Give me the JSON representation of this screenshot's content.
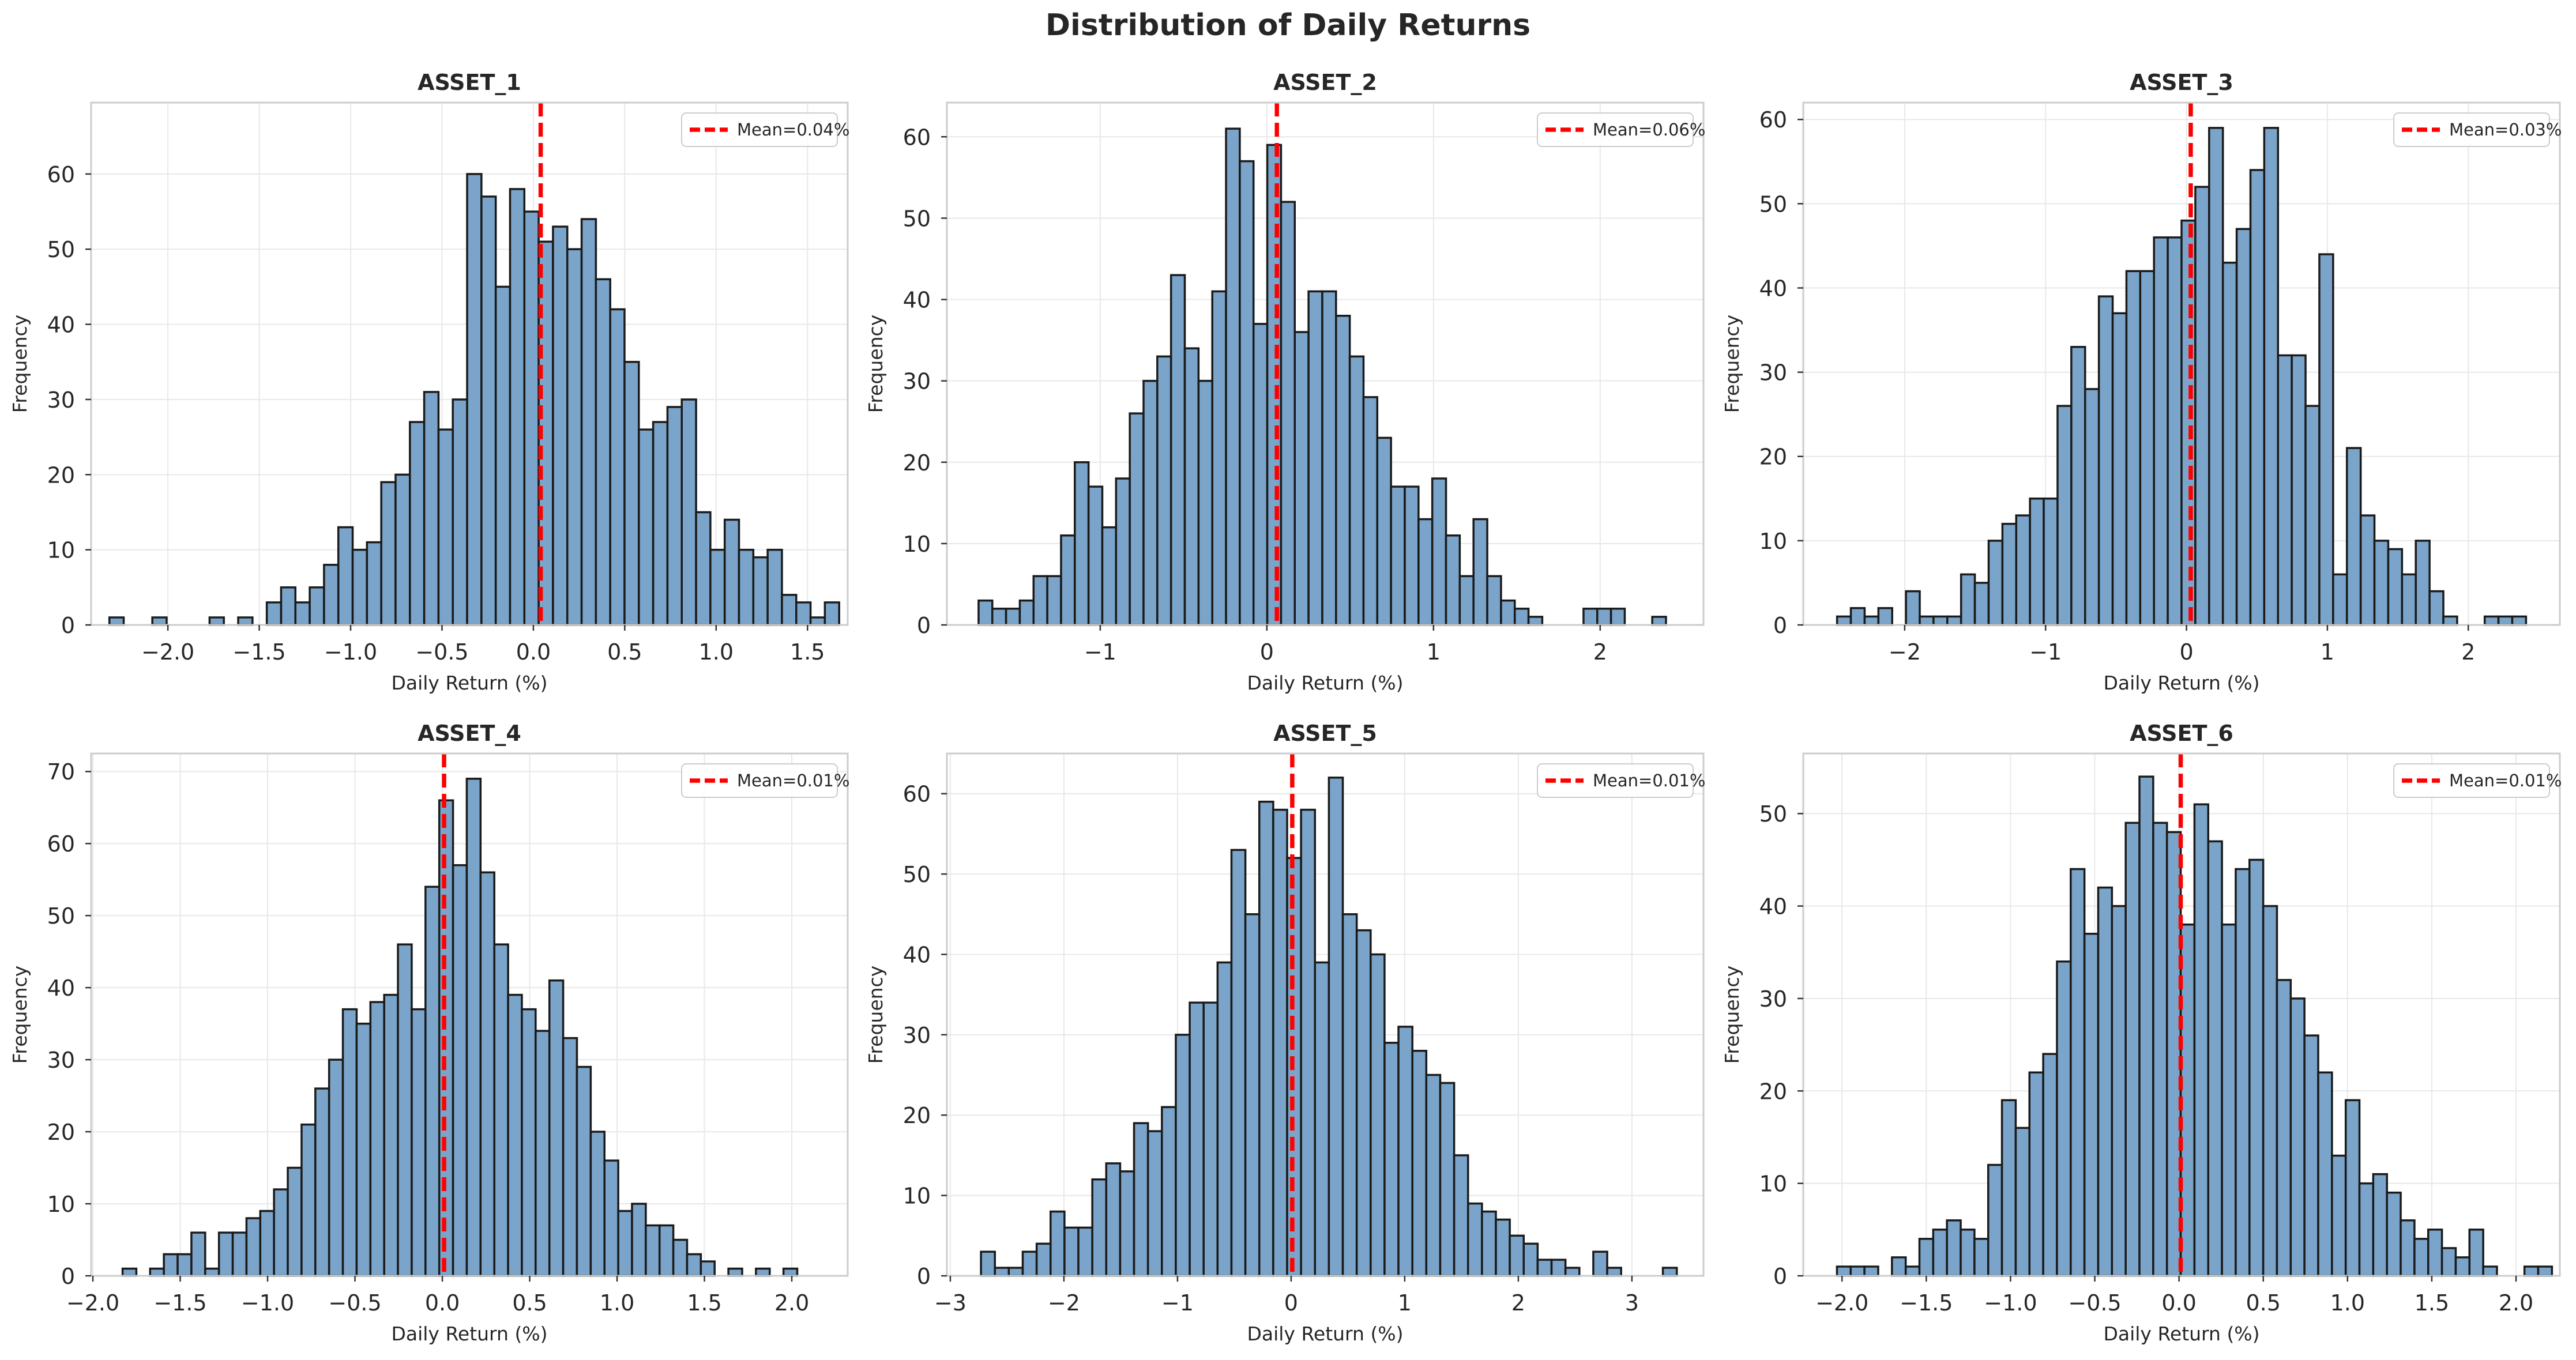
{
  "figure": {
    "title": "Distribution of Daily Returns"
  },
  "colors": {
    "bar_fill": "#7aa4c9",
    "bar_edge": "#1a1a1a",
    "mean_line": "#ff0000",
    "grid": "#e8e8e8",
    "spine": "#cccccc",
    "text": "#262626"
  },
  "chart_data": [
    {
      "type": "bar",
      "title": "ASSET_1",
      "xlabel": "Daily Return (%)",
      "ylabel": "Frequency",
      "xlim": [
        -2.42,
        1.72
      ],
      "ylim": [
        0,
        69.5
      ],
      "xticks": [
        -2.0,
        -1.5,
        -1.0,
        -0.5,
        0.0,
        0.5,
        1.0,
        1.5
      ],
      "xtick_labels": [
        "−2.0",
        "−1.5",
        "−1.0",
        "−0.5",
        "0.0",
        "0.5",
        "1.0",
        "1.5"
      ],
      "yticks": [
        0,
        10,
        20,
        30,
        40,
        50,
        60
      ],
      "bin_start": -2.32,
      "bin_width": 0.0783,
      "counts": [
        1,
        0,
        0,
        1,
        0,
        0,
        0,
        1,
        0,
        1,
        0,
        3,
        5,
        3,
        5,
        8,
        13,
        10,
        11,
        19,
        20,
        27,
        31,
        26,
        30,
        60,
        57,
        45,
        58,
        55,
        51,
        53,
        50,
        54,
        46,
        42,
        35,
        26,
        27,
        29,
        30,
        15,
        10,
        14,
        10,
        9,
        10,
        4,
        3,
        1,
        3
      ],
      "mean": 0.04,
      "legend": "Mean=0.04%",
      "legend_loc": "upper right",
      "grid": true
    },
    {
      "type": "bar",
      "title": "ASSET_2",
      "xlabel": "Daily Return (%)",
      "ylabel": "Frequency",
      "xlim": [
        -1.92,
        2.62
      ],
      "ylim": [
        0,
        64.2
      ],
      "xticks": [
        -1,
        0,
        1,
        2
      ],
      "xtick_labels": [
        "−1",
        "0",
        "1",
        "2"
      ],
      "yticks": [
        0,
        10,
        20,
        30,
        40,
        50,
        60
      ],
      "bin_start": -1.73,
      "bin_width": 0.0825,
      "counts": [
        3,
        2,
        2,
        3,
        6,
        6,
        11,
        20,
        17,
        12,
        18,
        26,
        30,
        33,
        43,
        34,
        30,
        41,
        61,
        57,
        37,
        59,
        52,
        36,
        41,
        41,
        38,
        33,
        28,
        23,
        17,
        17,
        13,
        18,
        11,
        6,
        13,
        6,
        3,
        2,
        1,
        0,
        0,
        0,
        2,
        2,
        2,
        0,
        0,
        1
      ],
      "mean": 0.06,
      "legend": "Mean=0.06%",
      "legend_loc": "upper right",
      "grid": true
    },
    {
      "type": "bar",
      "title": "ASSET_3",
      "xlabel": "Daily Return (%)",
      "ylabel": "Frequency",
      "xlim": [
        -2.72,
        2.65
      ],
      "ylim": [
        0,
        62.0
      ],
      "xticks": [
        -2,
        -1,
        0,
        1,
        2
      ],
      "xtick_labels": [
        "−2",
        "−1",
        "0",
        "1",
        "2"
      ],
      "yticks": [
        0,
        10,
        20,
        30,
        40,
        50,
        60
      ],
      "bin_start": -2.48,
      "bin_width": 0.0978,
      "counts": [
        1,
        2,
        1,
        2,
        0,
        4,
        1,
        1,
        1,
        6,
        5,
        10,
        12,
        13,
        15,
        15,
        26,
        33,
        28,
        39,
        37,
        42,
        42,
        46,
        46,
        48,
        52,
        59,
        43,
        47,
        54,
        59,
        32,
        32,
        26,
        44,
        6,
        21,
        13,
        10,
        9,
        6,
        10,
        4,
        1,
        0,
        0,
        1,
        1,
        1
      ],
      "mean": 0.03,
      "legend": "Mean=0.03%",
      "legend_loc": "upper right",
      "grid": true
    },
    {
      "type": "bar",
      "title": "ASSET_4",
      "xlabel": "Daily Return (%)",
      "ylabel": "Frequency",
      "xlim": [
        -2.01,
        2.32
      ],
      "ylim": [
        0,
        72.5
      ],
      "xticks": [
        -2.0,
        -1.5,
        -1.0,
        -0.5,
        0.0,
        0.5,
        1.0,
        1.5,
        2.0
      ],
      "xtick_labels": [
        "−2.0",
        "−1.5",
        "−1.0",
        "−0.5",
        "0.0",
        "0.5",
        "1.0",
        "1.5",
        "2.0"
      ],
      "yticks": [
        0,
        10,
        20,
        30,
        40,
        50,
        60,
        70
      ],
      "bin_start": -1.83,
      "bin_width": 0.0788,
      "counts": [
        1,
        0,
        1,
        3,
        3,
        6,
        1,
        6,
        6,
        8,
        9,
        12,
        15,
        21,
        26,
        30,
        37,
        35,
        38,
        39,
        46,
        37,
        54,
        66,
        57,
        69,
        56,
        46,
        39,
        37,
        34,
        41,
        33,
        29,
        20,
        16,
        9,
        10,
        7,
        7,
        5,
        3,
        2,
        0,
        1,
        0,
        1,
        0,
        1
      ],
      "mean": 0.01,
      "legend": "Mean=0.01%",
      "legend_loc": "upper right",
      "grid": true
    },
    {
      "type": "bar",
      "title": "ASSET_5",
      "xlabel": "Daily Return (%)",
      "ylabel": "Frequency",
      "xlim": [
        -3.03,
        3.63
      ],
      "ylim": [
        0,
        65.0
      ],
      "xticks": [
        -3,
        -2,
        -1,
        0,
        1,
        2,
        3
      ],
      "xtick_labels": [
        "−3",
        "−2",
        "−1",
        "0",
        "1",
        "2",
        "3"
      ],
      "yticks": [
        0,
        10,
        20,
        30,
        40,
        50,
        60
      ],
      "bin_start": -2.73,
      "bin_width": 0.1225,
      "counts": [
        3,
        1,
        1,
        3,
        4,
        8,
        6,
        6,
        12,
        14,
        13,
        19,
        18,
        21,
        30,
        34,
        34,
        39,
        53,
        45,
        59,
        58,
        52,
        58,
        39,
        62,
        45,
        43,
        40,
        29,
        31,
        28,
        25,
        24,
        15,
        9,
        8,
        7,
        5,
        4,
        2,
        2,
        1,
        0,
        3,
        1,
        0,
        0,
        0,
        1
      ],
      "mean": 0.01,
      "legend": "Mean=0.01%",
      "legend_loc": "upper right",
      "grid": true
    },
    {
      "type": "bar",
      "title": "ASSET_6",
      "xlabel": "Daily Return (%)",
      "ylabel": "Frequency",
      "xlim": [
        -2.23,
        2.26
      ],
      "ylim": [
        0,
        56.5
      ],
      "xticks": [
        -2.0,
        -1.5,
        -1.0,
        -0.5,
        0.0,
        0.5,
        1.0,
        1.5,
        2.0
      ],
      "xtick_labels": [
        "−2.0",
        "−1.5",
        "−1.0",
        "−0.5",
        "0.0",
        "0.5",
        "1.0",
        "1.5",
        "2.0"
      ],
      "yticks": [
        0,
        10,
        20,
        30,
        40,
        50
      ],
      "bin_start": -2.03,
      "bin_width": 0.0816,
      "counts": [
        1,
        1,
        1,
        0,
        2,
        1,
        4,
        5,
        6,
        5,
        4,
        12,
        19,
        16,
        22,
        24,
        34,
        44,
        37,
        42,
        40,
        49,
        54,
        49,
        48,
        38,
        51,
        47,
        38,
        44,
        45,
        40,
        32,
        30,
        26,
        22,
        13,
        19,
        10,
        11,
        9,
        6,
        4,
        5,
        3,
        2,
        5,
        1,
        0,
        0,
        1,
        1
      ],
      "mean": 0.01,
      "legend": "Mean=0.01%",
      "legend_loc": "upper right",
      "grid": true
    }
  ]
}
